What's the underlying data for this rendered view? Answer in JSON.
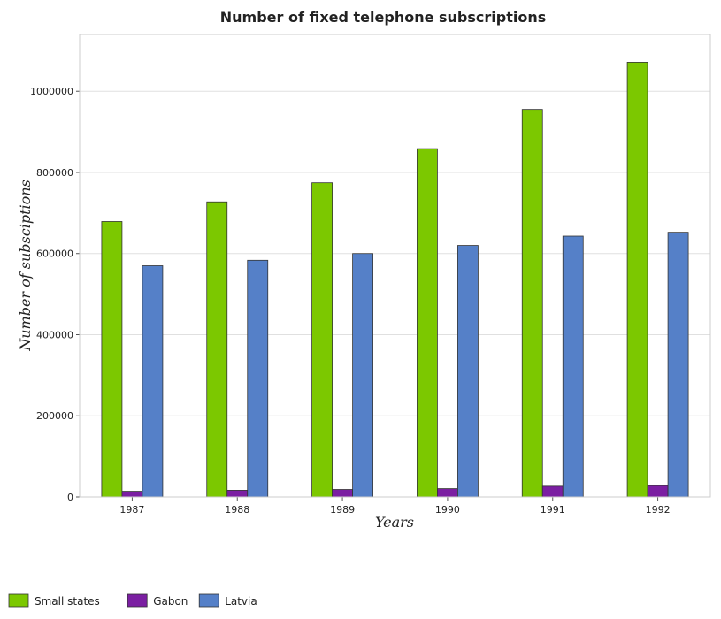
{
  "chart_data": {
    "type": "bar",
    "title": "Number of fixed telephone subscriptions",
    "xlabel": "Years",
    "ylabel": "Number of subsciptions",
    "categories": [
      "1987",
      "1988",
      "1989",
      "1990",
      "1991",
      "1992"
    ],
    "ylim": [
      0,
      1140000
    ],
    "yticks": [
      0,
      200000,
      400000,
      600000,
      800000,
      1000000
    ],
    "ytick_labels": [
      "0",
      "200000",
      "400000",
      "600000",
      "800000",
      "1000000"
    ],
    "grid": true,
    "legend_position": "bottom-left",
    "series": [
      {
        "name": "Small states",
        "color": "#7cc800",
        "values": [
          679000,
          727500,
          774500,
          858500,
          955500,
          1071500
        ]
      },
      {
        "name": "Gabon",
        "color": "#7b1fa2",
        "values": [
          14000,
          16500,
          18500,
          20500,
          26500,
          28000
        ]
      },
      {
        "name": "Latvia",
        "color": "#5580c8",
        "values": [
          570000,
          583500,
          600000,
          620000,
          643000,
          652500
        ]
      }
    ]
  }
}
